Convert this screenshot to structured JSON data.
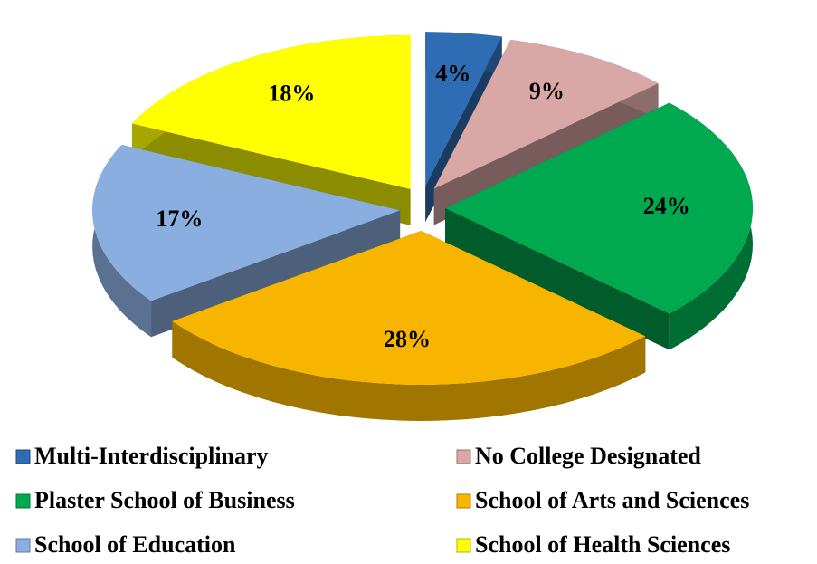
{
  "chart_data": {
    "type": "pie",
    "categories": [
      "Multi-Interdisciplinary",
      "No College Designated",
      "Plaster School of Business",
      "School of Arts and Sciences",
      "School of Education",
      "School of Health Sciences"
    ],
    "values": [
      4,
      9,
      24,
      28,
      17,
      18
    ],
    "value_labels": [
      "4%",
      "9%",
      "24%",
      "28%",
      "17%",
      "18%"
    ],
    "colors": [
      "#2e6db4",
      "#d9a7a6",
      "#00a84f",
      "#f7b500",
      "#8aaee0",
      "#ffff00"
    ],
    "legend": "bottom"
  }
}
